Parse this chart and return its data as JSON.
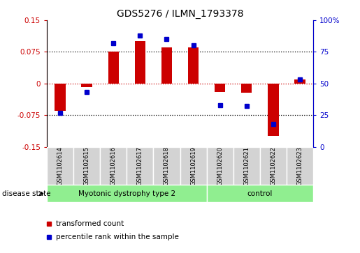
{
  "title": "GDS5276 / ILMN_1793378",
  "samples": [
    "GSM1102614",
    "GSM1102615",
    "GSM1102616",
    "GSM1102617",
    "GSM1102618",
    "GSM1102619",
    "GSM1102620",
    "GSM1102621",
    "GSM1102622",
    "GSM1102623"
  ],
  "red_values": [
    -0.065,
    -0.008,
    0.075,
    0.1,
    0.085,
    0.085,
    -0.02,
    -0.022,
    -0.125,
    0.01
  ],
  "blue_values": [
    27,
    43,
    82,
    88,
    85,
    80,
    33,
    32,
    18,
    53
  ],
  "groups": [
    {
      "label": "Myotonic dystrophy type 2",
      "start": 0,
      "end": 6,
      "color": "#90EE90"
    },
    {
      "label": "control",
      "start": 6,
      "end": 10,
      "color": "#90EE90"
    }
  ],
  "ylim_left": [
    -0.15,
    0.15
  ],
  "ylim_right": [
    0,
    100
  ],
  "yticks_left": [
    -0.15,
    -0.075,
    0,
    0.075,
    0.15
  ],
  "yticks_right": [
    0,
    25,
    50,
    75,
    100
  ],
  "hlines_black": [
    0.075,
    -0.075
  ],
  "hline_red": 0,
  "bar_width": 0.4,
  "red_color": "#cc0000",
  "blue_color": "#0000cc",
  "label_box_color": "#d3d3d3",
  "disease_state_label": "disease state",
  "ytick_labels_left": [
    "-0.15",
    "-0.075",
    "0",
    "0.075",
    "0.15"
  ],
  "ytick_labels_right": [
    "0",
    "25",
    "50",
    "75",
    "100%"
  ],
  "legend": [
    {
      "color": "#cc0000",
      "label": "transformed count"
    },
    {
      "color": "#0000cc",
      "label": "percentile rank within the sample"
    }
  ]
}
